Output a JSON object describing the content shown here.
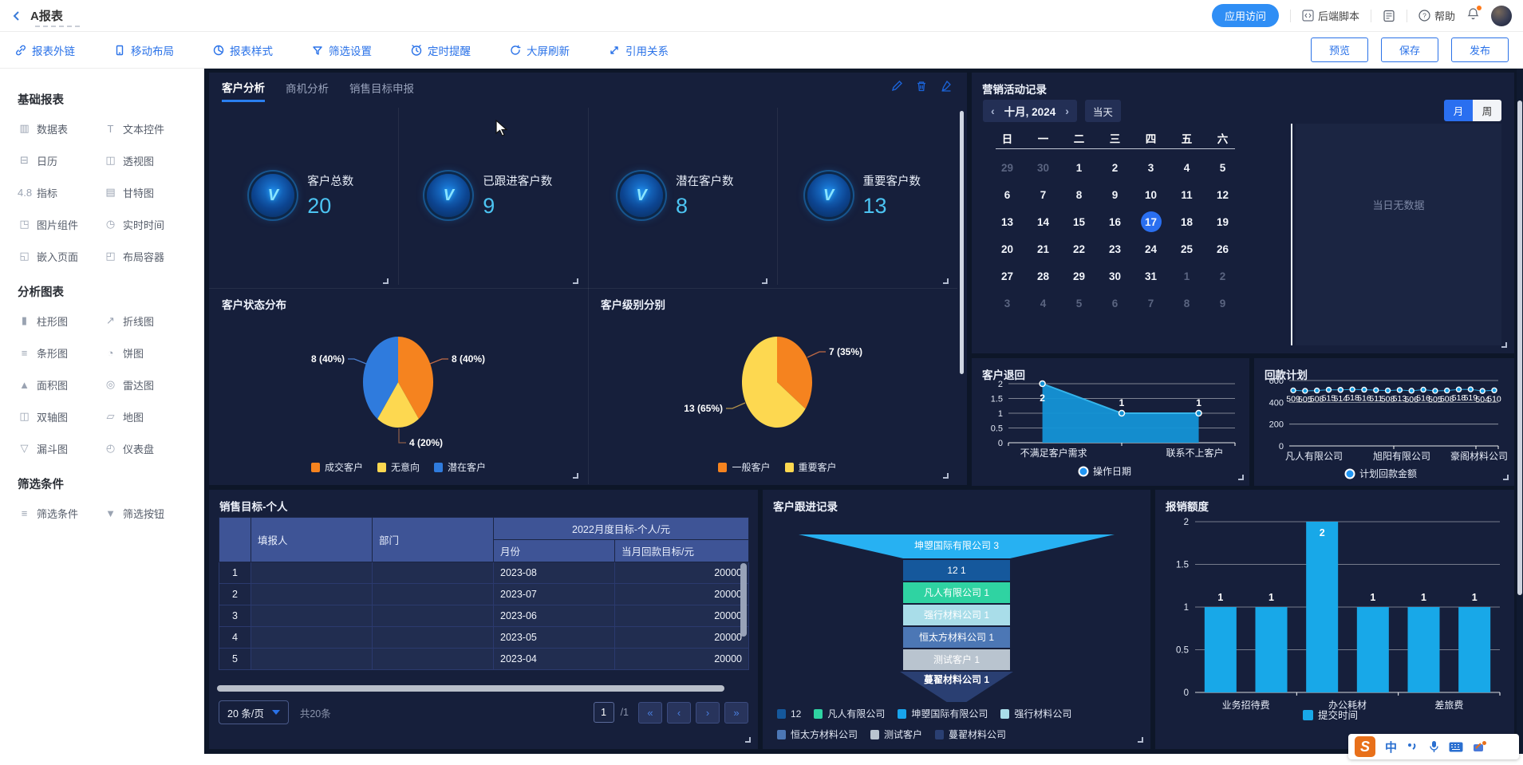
{
  "header": {
    "title": "A报表",
    "app_access": "应用访问",
    "backend_script": "后端脚本",
    "help": "帮助"
  },
  "toolbar": {
    "items": [
      "报表外链",
      "移动布局",
      "报表样式",
      "筛选设置",
      "定时提醒",
      "大屏刷新",
      "引用关系"
    ],
    "preview": "预览",
    "save": "保存",
    "publish": "发布"
  },
  "sidebar": {
    "sections": [
      {
        "title": "基础报表",
        "items": [
          "数据表",
          "文本控件",
          "日历",
          "透视图",
          "指标",
          "甘特图",
          "图片组件",
          "实时时间",
          "嵌入页面",
          "布局容器"
        ]
      },
      {
        "title": "分析图表",
        "items": [
          "柱形图",
          "折线图",
          "条形图",
          "饼图",
          "面积图",
          "雷达图",
          "双轴图",
          "地图",
          "漏斗图",
          "仪表盘"
        ]
      },
      {
        "title": "筛选条件",
        "items": [
          "筛选条件",
          "筛选按钮"
        ]
      }
    ]
  },
  "canvas": {
    "tabs": [
      "客户分析",
      "商机分析",
      "销售目标申报"
    ],
    "active_tab": "客户分析",
    "kpis": [
      {
        "label": "客户总数",
        "value": "20"
      },
      {
        "label": "已跟进客户数",
        "value": "9"
      },
      {
        "label": "潜在客户数",
        "value": "8"
      },
      {
        "label": "重要客户数",
        "value": "13"
      }
    ],
    "marketing": {
      "title": "营销活动记录",
      "month_label": "十月, 2024",
      "today_btn": "当天",
      "view_month": "月",
      "view_week": "周",
      "weekdays": [
        "日",
        "一",
        "二",
        "三",
        "四",
        "五",
        "六"
      ],
      "weeks": [
        [
          "29",
          "30",
          "1",
          "2",
          "3",
          "4",
          "5"
        ],
        [
          "6",
          "7",
          "8",
          "9",
          "10",
          "11",
          "12"
        ],
        [
          "13",
          "14",
          "15",
          "16",
          "17",
          "18",
          "19"
        ],
        [
          "20",
          "21",
          "22",
          "23",
          "24",
          "25",
          "26"
        ],
        [
          "27",
          "28",
          "29",
          "30",
          "31",
          "1",
          "2"
        ],
        [
          "3",
          "4",
          "5",
          "6",
          "7",
          "8",
          "9"
        ]
      ],
      "muted_cells": [
        "0-0",
        "0-1",
        "4-5",
        "4-6",
        "5-0",
        "5-1",
        "5-2",
        "5-3",
        "5-4",
        "5-5",
        "5-6"
      ],
      "selected_cell": "2-4",
      "empty_text": "当日无数据"
    }
  },
  "table": {
    "title": "销售目标-个人",
    "col_submitter": "填报人",
    "col_dept": "部门",
    "col_group": "2022月度目标-个人/元",
    "col_month": "月份",
    "col_target": "当月回款目标/元",
    "rows": [
      {
        "idx": "1",
        "month": "2023-08",
        "target": "20000"
      },
      {
        "idx": "2",
        "month": "2023-07",
        "target": "20000"
      },
      {
        "idx": "3",
        "month": "2023-06",
        "target": "20000"
      },
      {
        "idx": "4",
        "month": "2023-05",
        "target": "20000"
      },
      {
        "idx": "5",
        "month": "2023-04",
        "target": "20000"
      }
    ],
    "page_size": "20 条/页",
    "total": "共20条",
    "page": "1",
    "page_total": "/1",
    "pager_icons": {
      "first": "«",
      "prev": "‹",
      "next": "›",
      "last": "»"
    }
  },
  "chart_data": [
    {
      "id": "customer_status",
      "type": "pie",
      "title": "客户状态分布",
      "slices": [
        {
          "label": "成交客户",
          "value": 8,
          "pct": 40,
          "color": "#f5831f",
          "callout": "8 (40%)"
        },
        {
          "label": "无意向",
          "value": 4,
          "pct": 20,
          "color": "#fdd850",
          "callout": "4 (20%)"
        },
        {
          "label": "潜在客户",
          "value": 8,
          "pct": 40,
          "color": "#2f7bdd",
          "callout": "8 (40%)"
        }
      ]
    },
    {
      "id": "customer_level",
      "type": "pie",
      "title": "客户级别分别",
      "slices": [
        {
          "label": "一般客户",
          "value": 7,
          "pct": 35,
          "color": "#f5831f",
          "callout": "7 (35%)"
        },
        {
          "label": "重要客户",
          "value": 13,
          "pct": 65,
          "color": "#fdd850",
          "callout": "13 (65%)"
        }
      ]
    },
    {
      "id": "customer_return",
      "type": "area",
      "title": "客户退回",
      "categories": [
        "不满足客户需求",
        "联系不上客户"
      ],
      "values": [
        2,
        1,
        1
      ],
      "yticks": [
        0,
        0.5,
        1,
        1.5,
        2
      ],
      "legend": "操作日期",
      "color": "#1493d6"
    },
    {
      "id": "payback_plan",
      "type": "line",
      "title": "回款计划",
      "categories": [
        "凡人有限公司",
        "旭阳有限公司",
        "豪阁材料公司"
      ],
      "values": [
        509,
        505,
        508,
        515,
        514,
        518,
        516,
        511,
        508,
        513,
        506,
        516,
        505,
        508,
        518,
        519,
        504,
        510
      ],
      "yticks": [
        0,
        200,
        400,
        600
      ],
      "legend": "计划回款金额",
      "color": "#18a0e6"
    },
    {
      "id": "customer_follow",
      "type": "funnel",
      "title": "客户跟进记录",
      "stages": [
        {
          "label": "坤曌国际有限公司 3",
          "color": "#27b1f2",
          "shape": "top"
        },
        {
          "label": "12 1",
          "color": "#15589c"
        },
        {
          "label": "凡人有限公司 1",
          "color": "#2fd3a2"
        },
        {
          "label": "强行材料公司 1",
          "color": "#a9dde9"
        },
        {
          "label": "恒太方材料公司 1",
          "color": "#4c77b5"
        },
        {
          "label": "测试客户 1",
          "color": "#b9c4cf"
        },
        {
          "label": "蔓翟材料公司 1",
          "color": "#2a3f72",
          "shape": "bottom"
        }
      ],
      "legend": [
        {
          "label": "12",
          "color": "#15589c"
        },
        {
          "label": "凡人有限公司",
          "color": "#2fd3a2"
        },
        {
          "label": "坤曌国际有限公司",
          "color": "#18a4ec"
        },
        {
          "label": "强行材料公司",
          "color": "#a9dde9"
        },
        {
          "label": "恒太方材料公司",
          "color": "#4c77b5"
        },
        {
          "label": "测试客户",
          "color": "#b9c4cf"
        },
        {
          "label": "蔓翟材料公司",
          "color": "#2a3f72"
        }
      ]
    },
    {
      "id": "expense",
      "type": "bar",
      "title": "报销额度",
      "categories": [
        "业务招待费",
        "办公耗材",
        "差旅费"
      ],
      "values": [
        1,
        1,
        2,
        1,
        1,
        1
      ],
      "yticks": [
        0,
        0.5,
        1,
        1.5,
        2
      ],
      "legend": "提交时间",
      "color": "#18a8e8"
    }
  ],
  "ime": {
    "lang": "中"
  }
}
